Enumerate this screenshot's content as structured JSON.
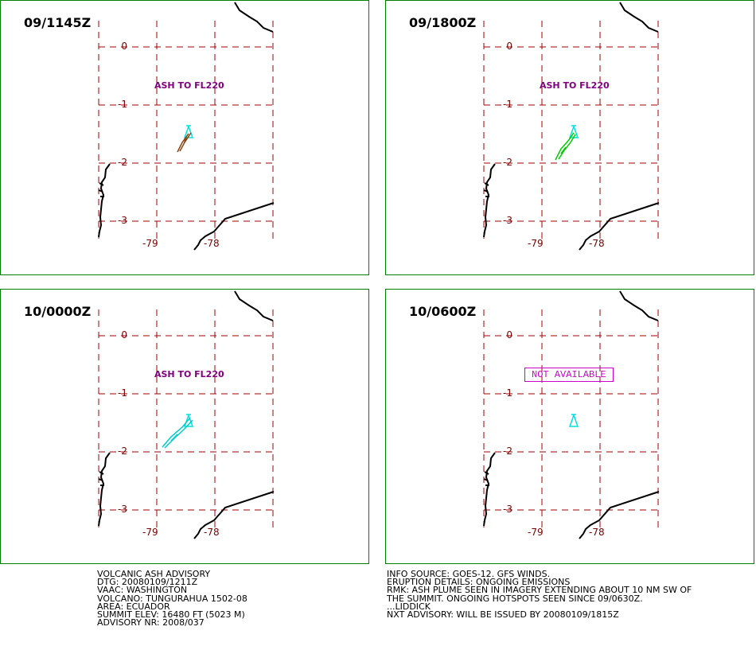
{
  "panels": [
    {
      "time": "09/1145Z",
      "label": "ASH TO FL220",
      "plume_color": "#8b4513",
      "plume": "small-sw",
      "available": true
    },
    {
      "time": "09/1800Z",
      "label": "ASH TO FL220",
      "plume_color": "#00cc00",
      "plume": "medium-sw",
      "available": true
    },
    {
      "time": "10/0000Z",
      "label": "ASH TO FL220",
      "plume_color": "#00cccc",
      "plume": "long-sw",
      "available": true
    },
    {
      "time": "10/0600Z",
      "label": "NOT AVAILABLE",
      "plume_color": "#cc00cc",
      "plume": "none",
      "available": false
    }
  ],
  "axes": {
    "lat_ticks": [
      "0",
      "-1",
      "-2",
      "-3"
    ],
    "lon_ticks": [
      "-79",
      "-78"
    ]
  },
  "colors": {
    "panel_border": "#008000",
    "grid": "#a00000",
    "tick_text": "#7a0000",
    "volcano_marker": "#00e0e0",
    "coastline": "#000000",
    "ash_label": "#800080"
  },
  "advisory_left": [
    "VOLCANIC ASH ADVISORY",
    "DTG: 20080109/1211Z",
    "VAAC: WASHINGTON",
    "VOLCANO: TUNGURAHUA 1502-08",
    "AREA: ECUADOR",
    "SUMMIT ELEV: 16480 FT (5023 M)",
    "ADVISORY NR: 2008/037"
  ],
  "advisory_right": [
    "INFO SOURCE: GOES-12. GFS WINDS.",
    "ERUPTION DETAILS: ONGOING EMISSIONS",
    "RMK: ASH PLUME SEEN IN IMAGERY EXTENDING ABOUT 10 NM SW OF",
    "THE SUMMIT. ONGOING HOTSPOTS SEEN SINCE 09/0630Z.",
    "...LIDDICK",
    "NXT ADVISORY: WILL BE ISSUED BY 20080109/1815Z"
  ]
}
